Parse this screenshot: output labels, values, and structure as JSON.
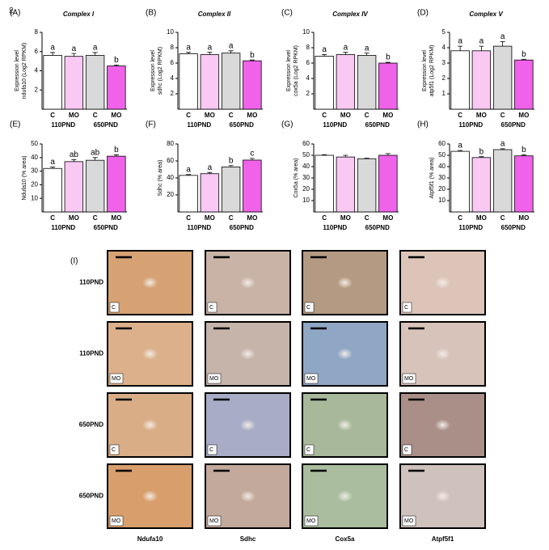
{
  "symbol": "♀",
  "chart_data": [
    {
      "type": "bar",
      "panel": "(A)",
      "title": "Complex I",
      "y_label": [
        "Expression level",
        "ndufa10 (Log2 RPKM)"
      ],
      "categories": [
        "C",
        "MO",
        "C",
        "MO"
      ],
      "groups": [
        "110PND",
        "650PND"
      ],
      "values": [
        5.6,
        5.5,
        5.6,
        4.5
      ],
      "errors": [
        0.3,
        0.3,
        0.3,
        0.1
      ],
      "letters": [
        "a",
        "a",
        "a",
        "b"
      ],
      "colors": [
        "#ffffff",
        "#f9c8f3",
        "#d9d9d9",
        "#f062ea"
      ],
      "ylim": [
        0,
        8
      ],
      "yticks": [
        2,
        4,
        6,
        8
      ]
    },
    {
      "type": "bar",
      "panel": "(B)",
      "title": "Complex II",
      "y_label": [
        "Expression level",
        "sdhc (Log2 RPKM)"
      ],
      "categories": [
        "C",
        "MO",
        "C",
        "MO"
      ],
      "groups": [
        "110PND",
        "650PND"
      ],
      "values": [
        7.2,
        7.1,
        7.3,
        6.3
      ],
      "errors": [
        0.2,
        0.3,
        0.3,
        0.1
      ],
      "letters": [
        "a",
        "a",
        "a",
        "b"
      ],
      "colors": [
        "#ffffff",
        "#f9c8f3",
        "#d9d9d9",
        "#f062ea"
      ],
      "ylim": [
        0,
        10
      ],
      "yticks": [
        2,
        4,
        6,
        8,
        10
      ]
    },
    {
      "type": "bar",
      "panel": "(C)",
      "title": "Complex IV",
      "y_label": [
        "Expression level",
        "cox5a (Log2 RPKM)"
      ],
      "categories": [
        "C",
        "MO",
        "C",
        "MO"
      ],
      "groups": [
        "110PND",
        "650PND"
      ],
      "values": [
        6.9,
        7.1,
        7.0,
        6.0
      ],
      "errors": [
        0.2,
        0.3,
        0.3,
        0.1
      ],
      "letters": [
        "a",
        "a",
        "a",
        "b"
      ],
      "colors": [
        "#ffffff",
        "#f9c8f3",
        "#d9d9d9",
        "#f062ea"
      ],
      "ylim": [
        0,
        10
      ],
      "yticks": [
        2,
        4,
        6,
        8,
        10
      ]
    },
    {
      "type": "bar",
      "panel": "(D)",
      "title": "Complex V",
      "y_label": [
        "Expression level",
        "atp5f1 (Log2 RPKM)"
      ],
      "categories": [
        "C",
        "MO",
        "C",
        "MO"
      ],
      "groups": [
        "110PND",
        "650PND"
      ],
      "values": [
        3.8,
        3.8,
        4.1,
        3.2
      ],
      "errors": [
        0.3,
        0.3,
        0.3,
        0.05
      ],
      "letters": [
        "a",
        "a",
        "a",
        "b"
      ],
      "colors": [
        "#ffffff",
        "#f9c8f3",
        "#d9d9d9",
        "#f062ea"
      ],
      "ylim": [
        0,
        5
      ],
      "yticks": [
        1,
        2,
        3,
        4,
        5
      ]
    },
    {
      "type": "bar",
      "panel": "(E)",
      "y_label": [
        "Ndufa10 (% area)"
      ],
      "categories": [
        "C",
        "MO",
        "C",
        "MO"
      ],
      "groups": [
        "110PND",
        "650PND"
      ],
      "values": [
        32,
        37,
        38,
        41
      ],
      "errors": [
        1,
        1.5,
        2,
        1
      ],
      "letters": [
        "a",
        "ab",
        "ab",
        "b"
      ],
      "colors": [
        "#ffffff",
        "#f9c8f3",
        "#d9d9d9",
        "#f062ea"
      ],
      "ylim": [
        0,
        50
      ],
      "yticks": [
        10,
        20,
        30,
        40,
        50
      ]
    },
    {
      "type": "bar",
      "panel": "(F)",
      "y_label": [
        "Sdhc (% area)"
      ],
      "categories": [
        "C",
        "MO",
        "C",
        "MO"
      ],
      "groups": [
        "110PND",
        "650PND"
      ],
      "values": [
        43,
        45,
        53,
        61
      ],
      "errors": [
        1,
        1.5,
        1.5,
        2
      ],
      "letters": [
        "a",
        "a",
        "b",
        "c"
      ],
      "colors": [
        "#ffffff",
        "#f9c8f3",
        "#d9d9d9",
        "#f062ea"
      ],
      "ylim": [
        0,
        80
      ],
      "yticks": [
        20,
        40,
        60,
        80
      ]
    },
    {
      "type": "bar",
      "panel": "(G)",
      "y_label": [
        "Cox5a (% area)"
      ],
      "categories": [
        "C",
        "MO",
        "C",
        "MO"
      ],
      "groups": [
        "110PND",
        "650PND"
      ],
      "values": [
        50,
        48.5,
        47,
        50
      ],
      "errors": [
        0.5,
        1.5,
        0.5,
        1.5
      ],
      "colors": [
        "#ffffff",
        "#f9c8f3",
        "#d9d9d9",
        "#f062ea"
      ],
      "ylim": [
        0,
        60
      ],
      "yticks": [
        10,
        20,
        30,
        40,
        50,
        60
      ]
    },
    {
      "type": "bar",
      "panel": "(H)",
      "y_label": [
        "Atpf5f1 (% area)"
      ],
      "categories": [
        "C",
        "MO",
        "C",
        "MO"
      ],
      "groups": [
        "110PND",
        "650PND"
      ],
      "values": [
        53.5,
        48,
        55,
        49.5
      ],
      "errors": [
        0.8,
        0.8,
        0.8,
        0.8
      ],
      "letters": [
        "a",
        "b",
        "a",
        "b"
      ],
      "colors": [
        "#ffffff",
        "#f9c8f3",
        "#d9d9d9",
        "#f062ea"
      ],
      "ylim": [
        0,
        60
      ],
      "yticks": [
        10,
        20,
        30,
        40,
        50,
        60
      ]
    }
  ],
  "image_panel": {
    "label": "(I)",
    "rows": [
      {
        "label": "110PND",
        "tag": "C"
      },
      {
        "label": "110PND",
        "tag": "MO"
      },
      {
        "label": "650PND",
        "tag": "C"
      },
      {
        "label": "650PND",
        "tag": "MO"
      }
    ],
    "columns": [
      "Ndufa10",
      "Sdhc",
      "Cox5a",
      "Atpf5f1"
    ]
  }
}
